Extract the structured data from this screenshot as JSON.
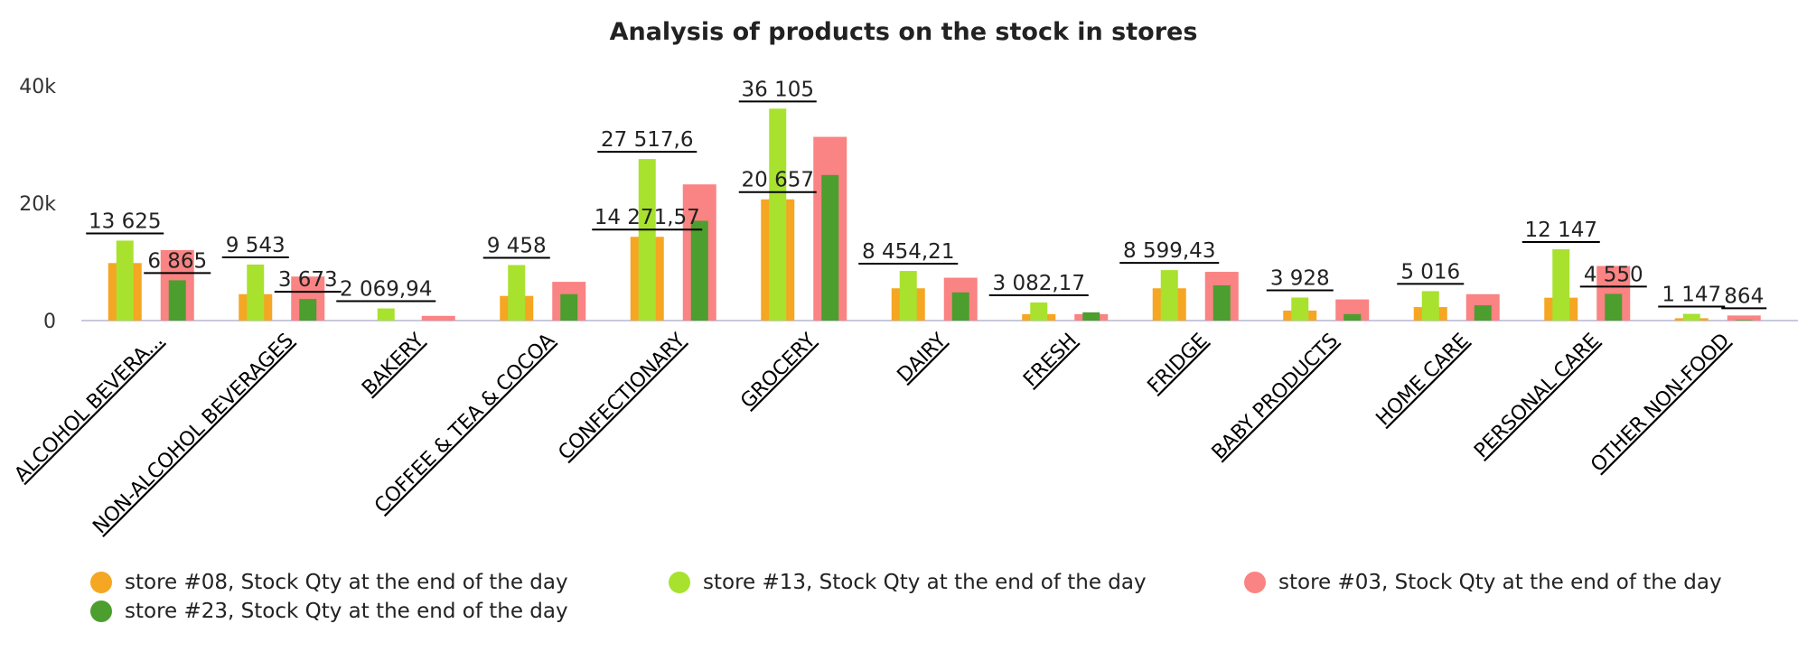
{
  "chart_data": {
    "type": "bar",
    "title": "Analysis of products on the stock in stores",
    "xlabel": "",
    "ylabel": "",
    "ylim": [
      0,
      40000
    ],
    "y_ticks": [
      "0",
      "20k",
      "40k"
    ],
    "y_tick_values": [
      0,
      20000,
      40000
    ],
    "grid": false,
    "legend_position": "bottom",
    "categories": [
      "ALCOHOL BEVERA...",
      "NON-ALCOHOL BEVERAGES",
      "BAKERY",
      "COFFEE & TEA & COCOA",
      "CONFECTIONARY",
      "GROCERY",
      "DAIRY",
      "FRESH",
      "FRIDGE",
      "BABY PRODUCTS",
      "HOME CARE",
      "PERSONAL CARE",
      "OTHER NON-FOOD"
    ],
    "series": [
      {
        "name": "store #08, Stock Qty at the end of the day",
        "color": "#F5A623",
        "values": [
          9800,
          4500,
          0,
          4200,
          14271.57,
          20657,
          5500,
          1100,
          5500,
          1700,
          2300,
          3900,
          400
        ]
      },
      {
        "name": "store #13, Stock Qty at the end of the day",
        "color": "#A8E22E",
        "values": [
          13625,
          9543,
          2069.94,
          9458,
          27517.6,
          36105,
          8454.21,
          3082.17,
          8599.43,
          3928,
          5016,
          12147,
          1147
        ]
      },
      {
        "name": "store #03, Stock Qty at the end of the day",
        "color": "#FA8383",
        "values": [
          12000,
          7500,
          800,
          6600,
          23200,
          31300,
          7300,
          1100,
          8300,
          3600,
          4500,
          9300,
          864
        ]
      },
      {
        "name": "store #23, Stock Qty at the end of the day",
        "color": "#4C9E2F",
        "values": [
          6865,
          3673,
          0,
          4500,
          17000,
          24800,
          4800,
          1400,
          6000,
          1100,
          2600,
          4550,
          100
        ]
      }
    ],
    "data_labels": [
      {
        "category": 0,
        "series": 1,
        "text": "13 625"
      },
      {
        "category": 0,
        "series": 3,
        "text": "6 865"
      },
      {
        "category": 1,
        "series": 1,
        "text": "9 543"
      },
      {
        "category": 1,
        "series": 3,
        "text": "3 673"
      },
      {
        "category": 2,
        "series": 1,
        "text": "2 069,94"
      },
      {
        "category": 3,
        "series": 1,
        "text": "9 458"
      },
      {
        "category": 4,
        "series": 1,
        "text": "27 517,6"
      },
      {
        "category": 4,
        "series": 0,
        "text": "14 271,57"
      },
      {
        "category": 5,
        "series": 1,
        "text": "36 105"
      },
      {
        "category": 5,
        "series": 0,
        "text": "20 657"
      },
      {
        "category": 6,
        "series": 1,
        "text": "8 454,21"
      },
      {
        "category": 7,
        "series": 1,
        "text": "3 082,17"
      },
      {
        "category": 8,
        "series": 1,
        "text": "8 599,43"
      },
      {
        "category": 9,
        "series": 1,
        "text": "3 928"
      },
      {
        "category": 10,
        "series": 1,
        "text": "5 016"
      },
      {
        "category": 11,
        "series": 1,
        "text": "12 147"
      },
      {
        "category": 11,
        "series": 3,
        "text": "4 550"
      },
      {
        "category": 12,
        "series": 1,
        "text": "1 147"
      },
      {
        "category": 12,
        "series": 2,
        "text": "864"
      }
    ]
  }
}
